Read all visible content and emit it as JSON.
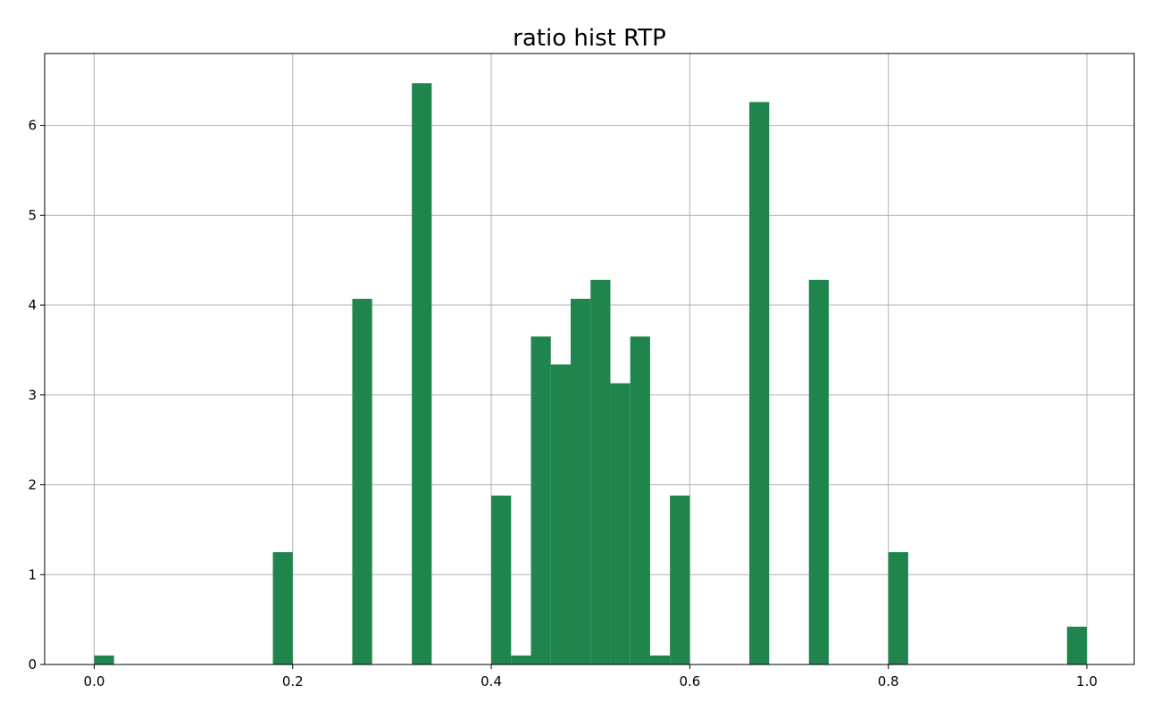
{
  "chart_data": {
    "type": "bar",
    "title": "ratio hist RTP",
    "xlabel": "",
    "ylabel": "",
    "xlim": [
      -0.0499,
      1.0477
    ],
    "ylim": [
      0,
      6.8
    ],
    "xticks": [
      "0.0",
      "0.2",
      "0.4",
      "0.6",
      "0.8",
      "1.0"
    ],
    "yticks": [
      "0",
      "1",
      "2",
      "3",
      "4",
      "5",
      "6"
    ],
    "grid": true,
    "bar_color": "#20854c",
    "bin_width": 0.02,
    "bins": [
      {
        "x0": 0.0,
        "x1": 0.02,
        "value": 0.1
      },
      {
        "x0": 0.18,
        "x1": 0.2,
        "value": 1.25
      },
      {
        "x0": 0.26,
        "x1": 0.28,
        "value": 4.07
      },
      {
        "x0": 0.32,
        "x1": 0.34,
        "value": 6.47
      },
      {
        "x0": 0.4,
        "x1": 0.42,
        "value": 1.88
      },
      {
        "x0": 0.42,
        "x1": 0.44,
        "value": 0.1
      },
      {
        "x0": 0.44,
        "x1": 0.46,
        "value": 3.65
      },
      {
        "x0": 0.46,
        "x1": 0.48,
        "value": 3.34
      },
      {
        "x0": 0.48,
        "x1": 0.5,
        "value": 4.07
      },
      {
        "x0": 0.5,
        "x1": 0.52,
        "value": 4.28
      },
      {
        "x0": 0.52,
        "x1": 0.54,
        "value": 3.13
      },
      {
        "x0": 0.54,
        "x1": 0.56,
        "value": 3.65
      },
      {
        "x0": 0.56,
        "x1": 0.58,
        "value": 0.1
      },
      {
        "x0": 0.58,
        "x1": 0.6,
        "value": 1.88
      },
      {
        "x0": 0.66,
        "x1": 0.68,
        "value": 6.26
      },
      {
        "x0": 0.72,
        "x1": 0.74,
        "value": 4.28
      },
      {
        "x0": 0.8,
        "x1": 0.82,
        "value": 1.25
      },
      {
        "x0": 0.98,
        "x1": 1.0,
        "value": 0.42
      }
    ]
  }
}
